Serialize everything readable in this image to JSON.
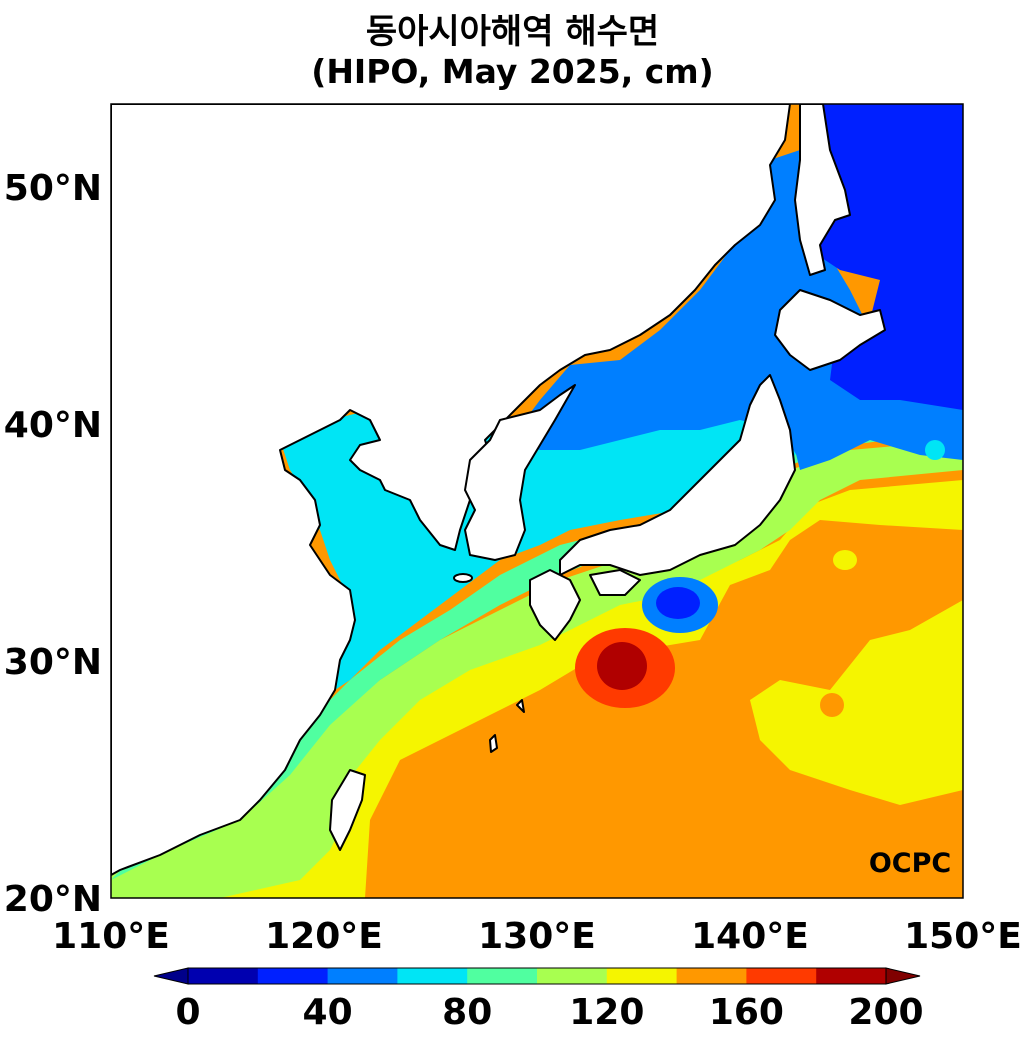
{
  "title_line1": "동아시아해역 해수면",
  "title_line2": "(HIPO, May 2025, cm)",
  "logo_text": "OCPC",
  "axes": {
    "lon_ticks": [
      "110°E",
      "120°E",
      "130°E",
      "140°E",
      "150°E"
    ],
    "lat_ticks": [
      "50°N",
      "40°N",
      "30°N",
      "20°N"
    ],
    "lon_range": [
      110,
      150
    ],
    "lat_range": [
      20,
      53.5
    ]
  },
  "colorbar": {
    "ticks": [
      "0",
      "40",
      "80",
      "120",
      "160",
      "200"
    ],
    "levels": [
      0,
      20,
      40,
      60,
      80,
      100,
      120,
      140,
      160,
      180,
      200
    ],
    "colors": [
      "#0000b0",
      "#0020ff",
      "#007fff",
      "#00e5f5",
      "#50ffa0",
      "#a8ff50",
      "#f5f500",
      "#ff9800",
      "#ff3a00",
      "#b00000"
    ],
    "under_color": "#00008a",
    "over_color": "#800000"
  },
  "land_color": "#ffffff",
  "coast_color": "#000000"
}
